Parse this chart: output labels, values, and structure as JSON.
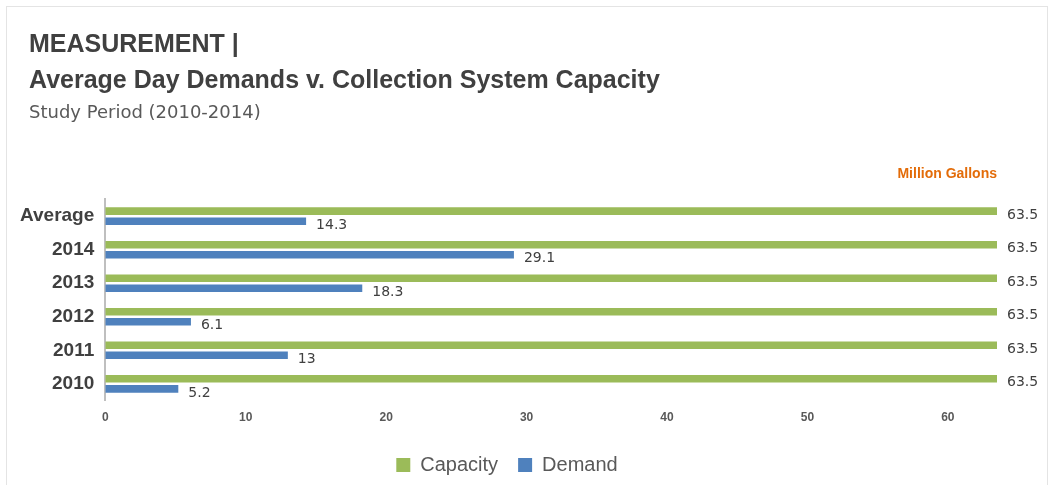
{
  "chart_data": {
    "type": "bar",
    "orientation": "horizontal",
    "title": "MEASUREMENT |\nAverage Day Demands v. Collection System Capacity",
    "subtitle": "Study Period (2010-2014)",
    "xlabel": "Million Gallons",
    "categories": [
      "Average",
      "2014",
      "2013",
      "2012",
      "2011",
      "2010"
    ],
    "series": [
      {
        "name": "Capacity",
        "color": "#9bbb59",
        "values": [
          63.5,
          63.5,
          63.5,
          63.5,
          63.5,
          63.5
        ]
      },
      {
        "name": "Demand",
        "color": "#4f81bd",
        "values": [
          14.3,
          29.1,
          18.3,
          6.1,
          13,
          5.2
        ]
      }
    ],
    "xlim": [
      0,
      63.5
    ],
    "xticks": [
      0,
      10,
      20,
      30,
      40,
      50,
      60
    ],
    "grid": false,
    "legend": "bottom",
    "data_labels": true
  }
}
